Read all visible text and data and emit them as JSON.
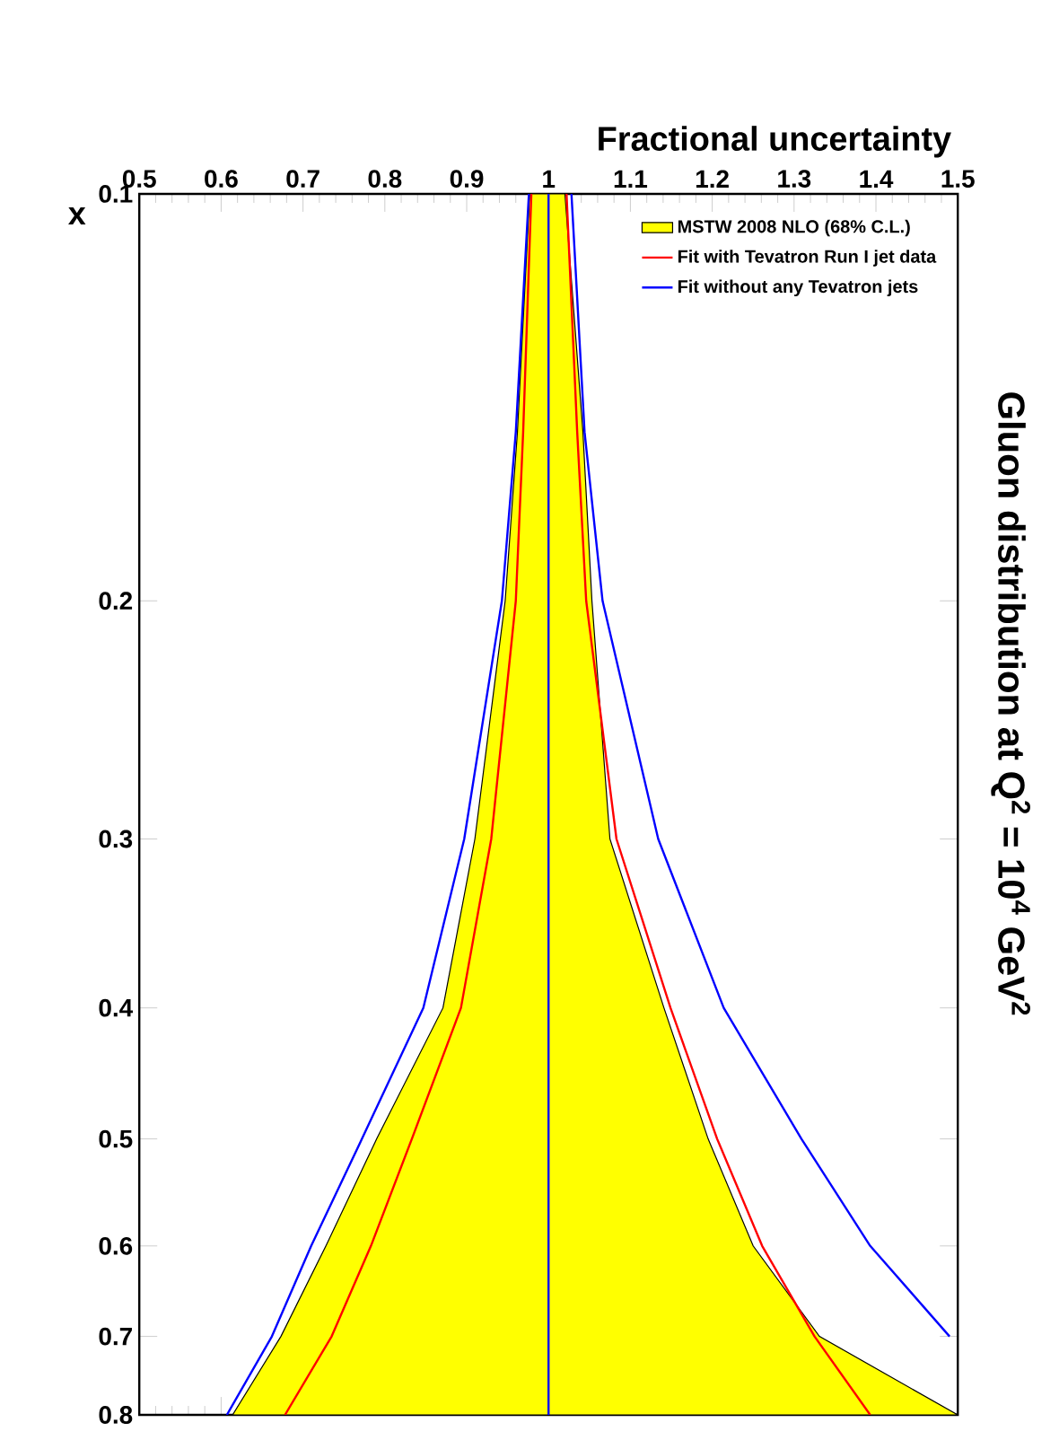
{
  "chart_data": {
    "type": "line",
    "title": "Gluon distribution at Q$^{2}$ = 10$^{4}$ GeV$^{2}$",
    "xlabel": "Fractional uncertainty",
    "ylabel": "x",
    "xlim": [
      0.5,
      1.5
    ],
    "ylim": [
      0.8,
      0.1
    ],
    "log": "y",
    "legend": "top right",
    "xticks": [
      0.5,
      0.6,
      0.7,
      0.8,
      0.9,
      1,
      1.1,
      1.2,
      1.3,
      1.4,
      1.5
    ],
    "yticks": [
      0.1,
      0.2,
      0.3,
      0.4,
      0.5,
      0.6,
      0.7,
      0.8
    ],
    "series": [
      {
        "name": "MSTW 2008 NLO (68% C.L.)",
        "type": "area",
        "color": "#ffff00",
        "x": [
          0.977,
          0.962,
          0.947,
          0.91,
          0.871,
          0.79,
          0.728,
          0.673,
          0.614,
          1.5,
          1.331,
          1.25,
          1.195,
          1.141,
          1.075,
          1.053,
          1.042,
          1.02
        ],
        "values": [
          0.1,
          0.15,
          0.2,
          0.3,
          0.4,
          0.5,
          0.6,
          0.7,
          0.8,
          0.8,
          0.7,
          0.6,
          0.5,
          0.4,
          0.3,
          0.2,
          0.15,
          0.1
        ]
      },
      {
        "color": "#ff0000",
        "x": [
          0.979,
          0.969,
          0.96,
          0.93,
          0.893,
          0.833,
          0.783,
          0.735,
          0.678
        ],
        "values": [
          0.1,
          0.15,
          0.2,
          0.3,
          0.4,
          0.5,
          0.6,
          0.7,
          0.8
        ]
      },
      {
        "name": "Fit with Tevatron Run I jet data",
        "color": "#ff0000",
        "x": [
          1.022,
          1.035,
          1.046,
          1.083,
          1.149,
          1.206,
          1.261,
          1.325,
          1.393
        ],
        "values": [
          0.1,
          0.15,
          0.2,
          0.3,
          0.4,
          0.5,
          0.6,
          0.7,
          0.8
        ]
      },
      {
        "color": "#0000ff",
        "x": [
          0.976,
          0.96,
          0.943,
          0.897,
          0.847,
          0.772,
          0.71,
          0.662,
          0.607
        ],
        "values": [
          0.1,
          0.15,
          0.2,
          0.3,
          0.4,
          0.5,
          0.6,
          0.7,
          0.8
        ]
      },
      {
        "name": "Fit without any Tevatron jets",
        "color": "#0000ff",
        "x": [
          1.028,
          1.044,
          1.066,
          1.134,
          1.214,
          1.309,
          1.393,
          1.49
        ],
        "values": [
          0.1,
          0.15,
          0.2,
          0.3,
          0.4,
          0.5,
          0.6,
          0.7
        ]
      },
      {
        "color": "#0000ff",
        "x": [
          1,
          1
        ],
        "values": [
          0.1,
          0.8
        ]
      }
    ]
  }
}
